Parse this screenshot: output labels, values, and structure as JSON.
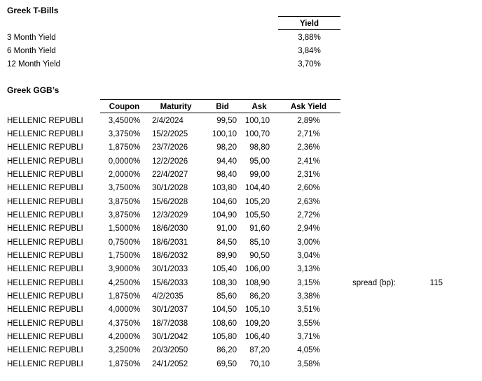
{
  "colors": {
    "text": "#000000",
    "background": "#ffffff",
    "border": "#000000"
  },
  "tbills": {
    "title": "Greek T-Bills",
    "yield_header": "Yield",
    "rows": [
      {
        "label": "3 Month Yield",
        "yield": "3,88%"
      },
      {
        "label": "6 Month Yield",
        "yield": "3,84%"
      },
      {
        "label": "12 Month Yield",
        "yield": "3,70%"
      }
    ]
  },
  "ggb": {
    "title": "Greek GGB’s",
    "columns": [
      "Coupon",
      "Maturity",
      "Bid",
      "Ask",
      "Ask Yield"
    ],
    "rows": [
      {
        "name": "HELLENIC REPUBLI",
        "coupon": "3,4500%",
        "maturity": "2/4/2024",
        "bid": "99,50",
        "ask": "100,10",
        "ask_yield": "2,89%"
      },
      {
        "name": "HELLENIC REPUBLI",
        "coupon": "3,3750%",
        "maturity": "15/2/2025",
        "bid": "100,10",
        "ask": "100,70",
        "ask_yield": "2,71%"
      },
      {
        "name": "HELLENIC REPUBLI",
        "coupon": "1,8750%",
        "maturity": "23/7/2026",
        "bid": "98,20",
        "ask": "98,80",
        "ask_yield": "2,36%"
      },
      {
        "name": "HELLENIC REPUBLI",
        "coupon": "0,0000%",
        "maturity": "12/2/2026",
        "bid": "94,40",
        "ask": "95,00",
        "ask_yield": "2,41%"
      },
      {
        "name": "HELLENIC REPUBLI",
        "coupon": "2,0000%",
        "maturity": "22/4/2027",
        "bid": "98,40",
        "ask": "99,00",
        "ask_yield": "2,31%"
      },
      {
        "name": "HELLENIC REPUBLI",
        "coupon": "3,7500%",
        "maturity": "30/1/2028",
        "bid": "103,80",
        "ask": "104,40",
        "ask_yield": "2,60%"
      },
      {
        "name": "HELLENIC REPUBLI",
        "coupon": "3,8750%",
        "maturity": "15/6/2028",
        "bid": "104,60",
        "ask": "105,20",
        "ask_yield": "2,63%"
      },
      {
        "name": "HELLENIC REPUBLI",
        "coupon": "3,8750%",
        "maturity": "12/3/2029",
        "bid": "104,90",
        "ask": "105,50",
        "ask_yield": "2,72%"
      },
      {
        "name": "HELLENIC REPUBLI",
        "coupon": "1,5000%",
        "maturity": "18/6/2030",
        "bid": "91,00",
        "ask": "91,60",
        "ask_yield": "2,94%"
      },
      {
        "name": "HELLENIC REPUBLI",
        "coupon": "0,7500%",
        "maturity": "18/6/2031",
        "bid": "84,50",
        "ask": "85,10",
        "ask_yield": "3,00%"
      },
      {
        "name": "HELLENIC REPUBLI",
        "coupon": "1,7500%",
        "maturity": "18/6/2032",
        "bid": "89,90",
        "ask": "90,50",
        "ask_yield": "3,04%"
      },
      {
        "name": "HELLENIC REPUBLI",
        "coupon": "3,9000%",
        "maturity": "30/1/2033",
        "bid": "105,40",
        "ask": "106,00",
        "ask_yield": "3,13%"
      },
      {
        "name": "HELLENIC REPUBLI",
        "coupon": "4,2500%",
        "maturity": "15/6/2033",
        "bid": "108,30",
        "ask": "108,90",
        "ask_yield": "3,15%"
      },
      {
        "name": "HELLENIC REPUBLI",
        "coupon": "1,8750%",
        "maturity": "4/2/2035",
        "bid": "85,60",
        "ask": "86,20",
        "ask_yield": "3,38%"
      },
      {
        "name": "HELLENIC REPUBLI",
        "coupon": "4,0000%",
        "maturity": "30/1/2037",
        "bid": "104,50",
        "ask": "105,10",
        "ask_yield": "3,51%"
      },
      {
        "name": "HELLENIC REPUBLI",
        "coupon": "4,3750%",
        "maturity": "18/7/2038",
        "bid": "108,60",
        "ask": "109,20",
        "ask_yield": "3,55%"
      },
      {
        "name": "HELLENIC REPUBLI",
        "coupon": "4,2000%",
        "maturity": "30/1/2042",
        "bid": "105,80",
        "ask": "106,40",
        "ask_yield": "3,71%"
      },
      {
        "name": "HELLENIC REPUBLI",
        "coupon": "3,2500%",
        "maturity": "20/3/2050",
        "bid": "86,20",
        "ask": "87,20",
        "ask_yield": "4,05%"
      },
      {
        "name": "HELLENIC REPUBLI",
        "coupon": "1,8750%",
        "maturity": "24/1/2052",
        "bid": "69,50",
        "ask": "70,10",
        "ask_yield": "3,58%"
      }
    ]
  },
  "spread": {
    "label": "spread (bp):",
    "value": "115",
    "row_index": 12
  }
}
